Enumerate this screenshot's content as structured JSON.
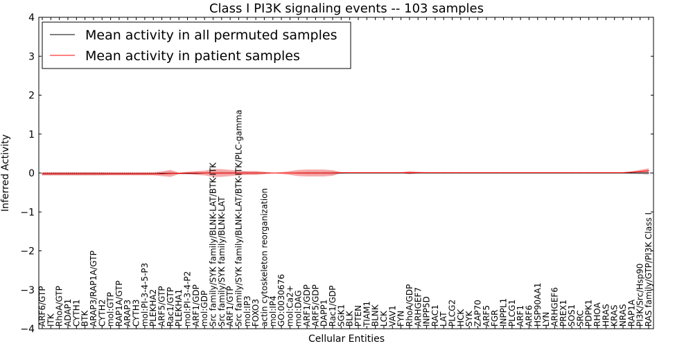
{
  "chart_data": {
    "type": "line",
    "title": "Class I PI3K signaling events -- 103 samples",
    "xlabel": "Cellular Entities",
    "ylabel": "Inferred Activity",
    "ylim": [
      -4,
      4
    ],
    "yticks": [
      -4,
      -3,
      -2,
      -1,
      0,
      1,
      2,
      3,
      4
    ],
    "legend": {
      "placement": "top-left",
      "entries": [
        {
          "label": "Mean activity in all permuted samples",
          "color": "#000000"
        },
        {
          "label": "Mean activity in patient samples",
          "color": "#ff0000"
        }
      ]
    },
    "categories": [
      "ARF6/GTP",
      "ITK",
      "RhoA/GTP",
      "ADAP1",
      "CYTH1",
      "BTK",
      "ARAP3/RAP1A/GTP",
      "CYTH2",
      "mol:GTP",
      "RAP1A/GTP",
      "ARAP3",
      "CYTH3",
      "mol:PI-3-4-5-P3",
      "PLEKHA2",
      "ARF5/GTP",
      "Rac1/GTP",
      "PLEKHA1",
      "mol:PI-3-4-P2",
      "ARF1/GDP",
      "mol:GDP",
      "Src family/SYK family/BLNK-LAT/BTK-ITK",
      "Src family/SYK family/BLNK-LAT",
      "ARF1/GTP",
      "Src family/SYK family/BLNK-LAT/BTK-ITK/PLC-gamma",
      "mol:IP3",
      "FOXO3",
      "actin cytoskeleton reorganization",
      "mol:IP4",
      "GO:0030676",
      "mol:Ca2+",
      "mol:DAG",
      "ARF1/GDP",
      "ARF5/GDP",
      "DAPP1",
      "Rac1/GDP",
      "SGK1",
      "BLK",
      "PTEN",
      "TIAM1",
      "BLNK",
      "LCK",
      "VAV1",
      "FYN",
      "RhoA/GDP",
      "ARHGEF7",
      "INPP5D",
      "RAC1",
      "LAT",
      "PLCG2",
      "HCK",
      "SYK",
      "ZAP70",
      "ARF5",
      "FGR",
      "INPPL1",
      "PLCG1",
      "ARF1",
      "ARF6",
      "HSP90AA1",
      "LYN",
      "ARHGEF6",
      "PREX1",
      "SOS1",
      "SRC",
      "PDPK1",
      "RHOA",
      "HRAS",
      "KRAS",
      "NRAS",
      "RAP1A",
      "PI3K/Src/Hsp90",
      "RAS family/GTP/PI3K Class I"
    ],
    "series": [
      {
        "name": "Mean activity in all permuted samples",
        "color": "#000000",
        "values": [
          -0.02,
          -0.02,
          -0.02,
          -0.02,
          -0.02,
          -0.02,
          -0.02,
          -0.02,
          -0.02,
          -0.02,
          -0.02,
          -0.02,
          -0.02,
          -0.02,
          -0.01,
          -0.01,
          -0.01,
          -0.01,
          -0.01,
          0.0,
          0.0,
          0.0,
          0.0,
          0.0,
          0.0,
          0.0,
          0.0,
          0.0,
          0.0,
          0.0,
          0.0,
          0.0,
          0.0,
          0.0,
          0.0,
          0.0,
          0.0,
          0.0,
          0.0,
          0.0,
          0.0,
          0.0,
          0.0,
          0.0,
          0.0,
          0.0,
          0.0,
          0.0,
          0.0,
          0.0,
          0.0,
          0.0,
          0.0,
          0.0,
          0.0,
          0.0,
          0.0,
          0.0,
          0.0,
          0.0,
          0.0,
          0.0,
          0.0,
          0.0,
          0.0,
          0.0,
          0.0,
          0.0,
          0.0,
          0.0,
          0.0,
          0.0
        ],
        "band": [
          0.04,
          0.04,
          0.04,
          0.04,
          0.04,
          0.04,
          0.04,
          0.04,
          0.03,
          0.03,
          0.03,
          0.03,
          0.03,
          0.03,
          0.03,
          0.04,
          0.02,
          0.02,
          0.02,
          0.02,
          0.03,
          0.03,
          0.03,
          0.03,
          0.03,
          0.03,
          0.02,
          0.01,
          0.01,
          0.01,
          0.02,
          0.03,
          0.03,
          0.03,
          0.04,
          0.02,
          0.01,
          0.01,
          0.01,
          0.01,
          0.01,
          0.01,
          0.01,
          0.01,
          0.01,
          0.01,
          0.01,
          0.01,
          0.01,
          0.01,
          0.01,
          0.01,
          0.01,
          0.01,
          0.01,
          0.01,
          0.01,
          0.01,
          0.01,
          0.01,
          0.01,
          0.01,
          0.01,
          0.01,
          0.01,
          0.01,
          0.01,
          0.01,
          0.01,
          0.02,
          0.03,
          0.05
        ]
      },
      {
        "name": "Mean activity in patient samples",
        "color": "#ff0000",
        "values": [
          -0.02,
          -0.02,
          -0.02,
          -0.02,
          -0.02,
          -0.02,
          -0.02,
          -0.02,
          -0.02,
          -0.02,
          -0.02,
          -0.02,
          -0.02,
          -0.02,
          -0.02,
          -0.01,
          -0.01,
          0.0,
          0.0,
          0.0,
          0.0,
          0.0,
          0.0,
          0.0,
          0.0,
          0.0,
          0.0,
          0.0,
          0.0,
          0.0,
          0.0,
          0.0,
          0.0,
          0.0,
          0.0,
          0.01,
          0.01,
          0.01,
          0.01,
          0.01,
          0.01,
          0.01,
          0.01,
          0.01,
          0.01,
          0.01,
          0.01,
          0.01,
          0.01,
          0.01,
          0.01,
          0.01,
          0.01,
          0.01,
          0.01,
          0.01,
          0.01,
          0.01,
          0.01,
          0.01,
          0.01,
          0.01,
          0.01,
          0.01,
          0.01,
          0.01,
          0.01,
          0.01,
          0.01,
          0.02,
          0.04,
          0.06
        ],
        "band": [
          0.04,
          0.04,
          0.04,
          0.04,
          0.04,
          0.04,
          0.04,
          0.04,
          0.04,
          0.04,
          0.04,
          0.04,
          0.04,
          0.04,
          0.06,
          0.09,
          0.02,
          0.03,
          0.05,
          0.06,
          0.1,
          0.1,
          0.08,
          0.06,
          0.05,
          0.05,
          0.03,
          0.01,
          0.02,
          0.05,
          0.08,
          0.09,
          0.09,
          0.09,
          0.07,
          0.01,
          0.01,
          0.01,
          0.01,
          0.01,
          0.01,
          0.01,
          0.01,
          0.04,
          0.02,
          0.01,
          0.01,
          0.01,
          0.01,
          0.01,
          0.01,
          0.01,
          0.01,
          0.01,
          0.01,
          0.01,
          0.01,
          0.01,
          0.01,
          0.01,
          0.01,
          0.01,
          0.01,
          0.01,
          0.01,
          0.01,
          0.01,
          0.01,
          0.01,
          0.02,
          0.04,
          0.06
        ]
      }
    ]
  }
}
